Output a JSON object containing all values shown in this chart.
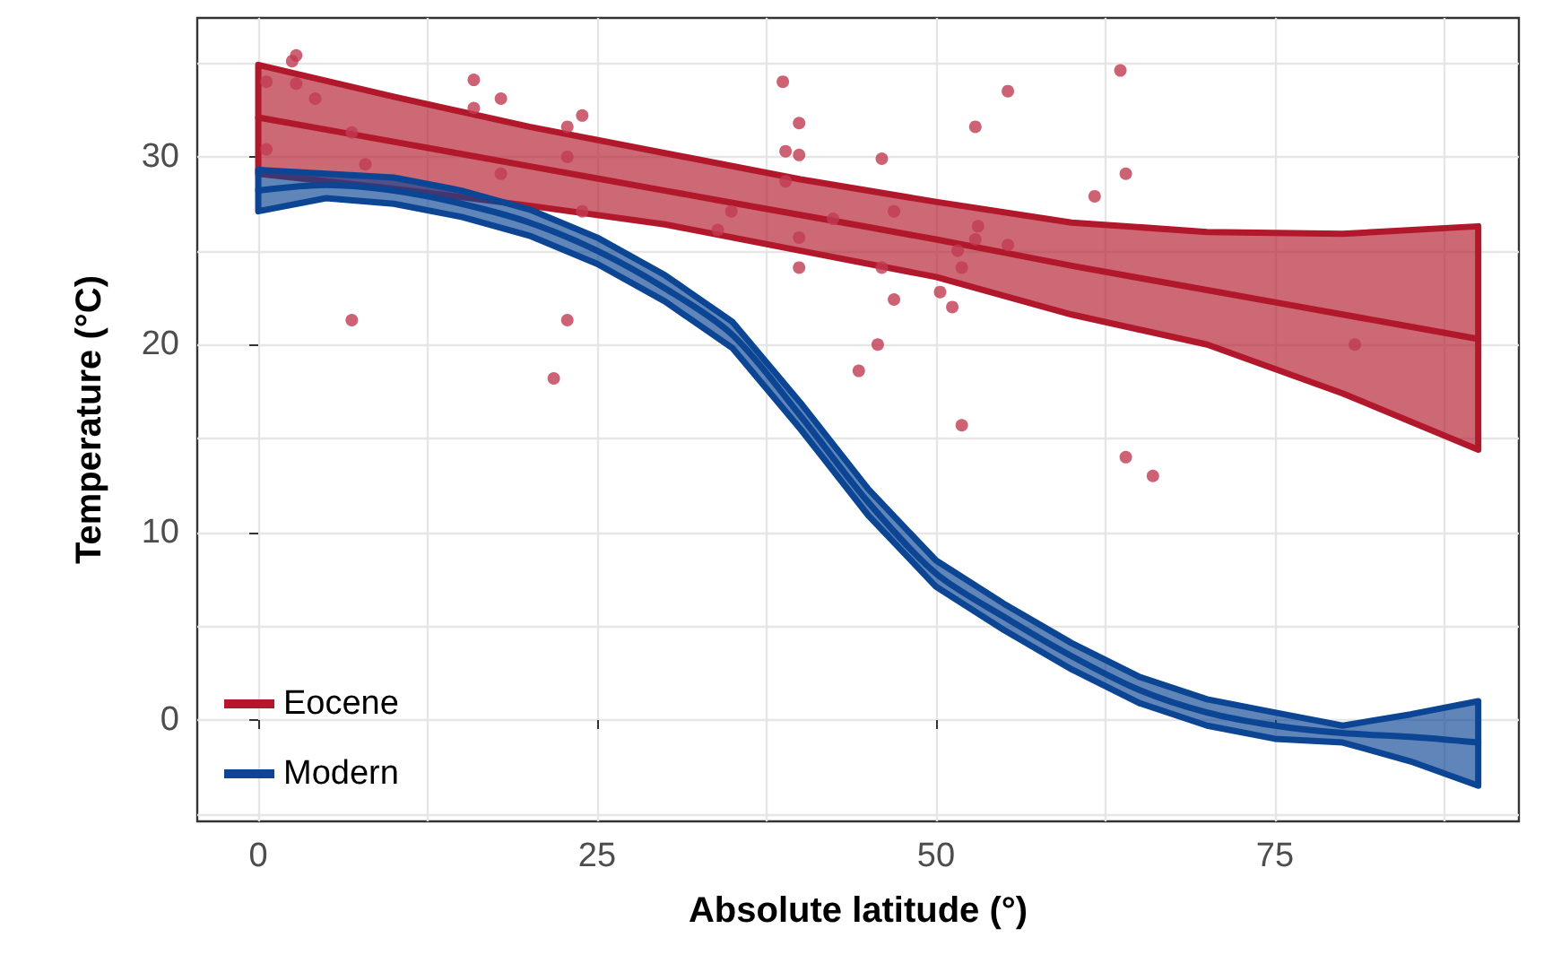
{
  "chart_data": {
    "type": "line",
    "xlabel": "Absolute latitude (°)",
    "ylabel": "Temperature (°C)",
    "xlim": [
      -4.5,
      93
    ],
    "ylim": [
      -5.4,
      37.4
    ],
    "xticks": [
      0,
      {
        "value": 12.5,
        "label": null
      },
      25,
      {
        "value": 37.5,
        "label": null
      },
      50,
      {
        "value": 62.5,
        "label": null
      },
      75,
      {
        "value": 87.5,
        "label": null
      }
    ],
    "yticks": [
      {
        "value": -5,
        "label": null
      },
      0,
      {
        "value": 5,
        "label": null
      },
      10,
      {
        "value": 15,
        "label": null
      },
      20,
      {
        "value": 25,
        "label": null
      },
      30,
      {
        "value": 35,
        "label": null
      }
    ],
    "grid": true,
    "legend": "bottom left",
    "marker": "none",
    "line_style": "solid",
    "series": [
      {
        "name": "Eocene",
        "color": "#b2182b",
        "x": [
          0,
          10,
          20,
          30,
          40,
          50,
          60,
          70,
          80,
          90
        ],
        "values": [
          32.1,
          30.8,
          29.5,
          28.2,
          26.9,
          25.6,
          24.2,
          22.9,
          21.6,
          20.3
        ],
        "lower": [
          29.1,
          28.3,
          27.4,
          26.4,
          25.0,
          23.6,
          21.6,
          20.0,
          17.4,
          14.4
        ],
        "upper": [
          34.9,
          33.2,
          31.6,
          30.2,
          28.8,
          27.6,
          26.5,
          26.0,
          25.9,
          26.3
        ]
      },
      {
        "name": "Modern",
        "color": "#0b4594",
        "x": [
          0,
          5,
          10,
          15,
          20,
          25,
          30,
          35,
          40,
          45,
          50,
          55,
          60,
          65,
          70,
          75,
          80,
          85,
          90
        ],
        "values": [
          28.2,
          28.5,
          28.2,
          27.5,
          26.5,
          25.0,
          23.0,
          20.5,
          16.2,
          11.6,
          7.8,
          5.5,
          3.4,
          1.6,
          0.4,
          -0.3,
          -0.7,
          -0.9,
          -1.2
        ],
        "lower": [
          27.1,
          27.8,
          27.5,
          26.8,
          25.8,
          24.3,
          22.3,
          19.8,
          15.5,
          10.9,
          7.1,
          4.8,
          2.7,
          0.9,
          -0.3,
          -1.0,
          -1.2,
          -2.2,
          -3.5
        ],
        "upper": [
          29.3,
          29.1,
          28.9,
          28.2,
          27.2,
          25.7,
          23.7,
          21.2,
          16.9,
          12.3,
          8.5,
          6.2,
          4.1,
          2.3,
          1.1,
          0.4,
          -0.3,
          0.3,
          1.0
        ]
      },
      {
        "type": "scatter",
        "marker": "circle",
        "color": "#c23b53",
        "x": [
          0.6,
          2.5,
          2.8,
          2.8,
          4.2,
          0.6,
          6.9,
          7.9,
          6.9,
          15.9,
          15.9,
          17.9,
          17.9,
          22.8,
          23.9,
          22.8,
          23.9,
          22.8,
          21.8,
          34.9,
          33.9,
          38.7,
          39.9,
          38.9,
          39.9,
          38.9,
          39.9,
          39.9,
          42.4,
          44.3,
          46.0,
          46.9,
          46.0,
          46.9,
          45.7,
          52.9,
          55.3,
          53.1,
          52.9,
          51.6,
          55.3,
          51.9,
          50.3,
          51.2,
          51.9,
          63.6,
          64.0,
          61.7,
          80.9,
          64.0,
          66.0
        ],
        "values": [
          34.0,
          35.1,
          35.4,
          33.9,
          33.1,
          30.4,
          31.3,
          29.6,
          21.3,
          34.1,
          32.6,
          33.1,
          29.1,
          31.6,
          32.2,
          30.0,
          27.1,
          21.3,
          18.2,
          27.1,
          26.1,
          34.0,
          31.8,
          30.3,
          30.1,
          28.7,
          25.7,
          24.1,
          26.7,
          18.6,
          29.9,
          27.1,
          24.1,
          22.4,
          20.0,
          31.6,
          33.5,
          26.3,
          25.6,
          25.0,
          25.3,
          24.1,
          22.8,
          22.0,
          15.7,
          34.6,
          29.1,
          27.9,
          20.0,
          14.0,
          13.0
        ]
      }
    ]
  }
}
